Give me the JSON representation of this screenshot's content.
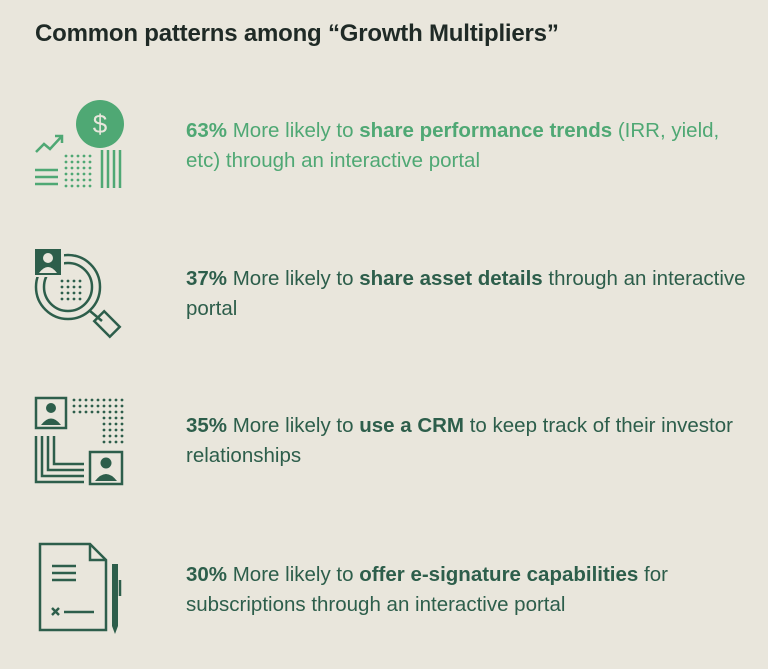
{
  "title": "Common patterns among “Growth Multipliers”",
  "colors": {
    "background": "#e9e6dc",
    "dark_green": "#2d5e4b",
    "light_green": "#4fa874",
    "title": "#1f2a26"
  },
  "items": [
    {
      "icon": "growth-dollar-chart-icon",
      "pct": "63%",
      "lead": "More likely to",
      "highlight": "share performance trends",
      "rest": "(IRR, yield, etc) through an interactive portal"
    },
    {
      "icon": "asset-search-magnifier-icon",
      "pct": "37%",
      "lead": "More likely to",
      "highlight": "share asset details",
      "rest": "through an interactive portal"
    },
    {
      "icon": "crm-contacts-icon",
      "pct": "35%",
      "lead": "More likely to",
      "highlight": "use a CRM",
      "rest": "to keep track of their investor relationships"
    },
    {
      "icon": "e-signature-document-icon",
      "pct": "30%",
      "lead": "More likely to",
      "highlight": "offer e-signature capabilities",
      "rest": "for subscriptions through an interactive portal"
    }
  ]
}
